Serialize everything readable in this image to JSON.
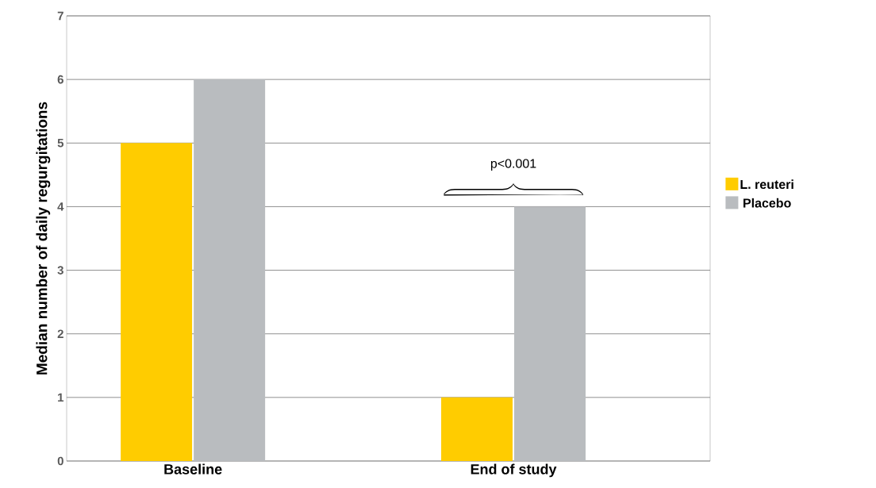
{
  "chart_data": {
    "type": "bar",
    "ylabel": "Median number of daily regurgitations",
    "categories": [
      "Baseline",
      "End of study"
    ],
    "series": [
      {
        "name": "L. reuteri",
        "color": "#ffcc00",
        "values": [
          5,
          1
        ]
      },
      {
        "name": "Placebo",
        "color": "#b9bcbf",
        "values": [
          6,
          4
        ]
      }
    ],
    "ylim": [
      0,
      7
    ],
    "yticks": [
      0,
      1,
      2,
      3,
      4,
      5,
      6,
      7
    ],
    "grid": "y",
    "legend": "right",
    "annotations": [
      {
        "text": "p<0.001",
        "x": "End of study",
        "y": 4.05
      }
    ]
  }
}
